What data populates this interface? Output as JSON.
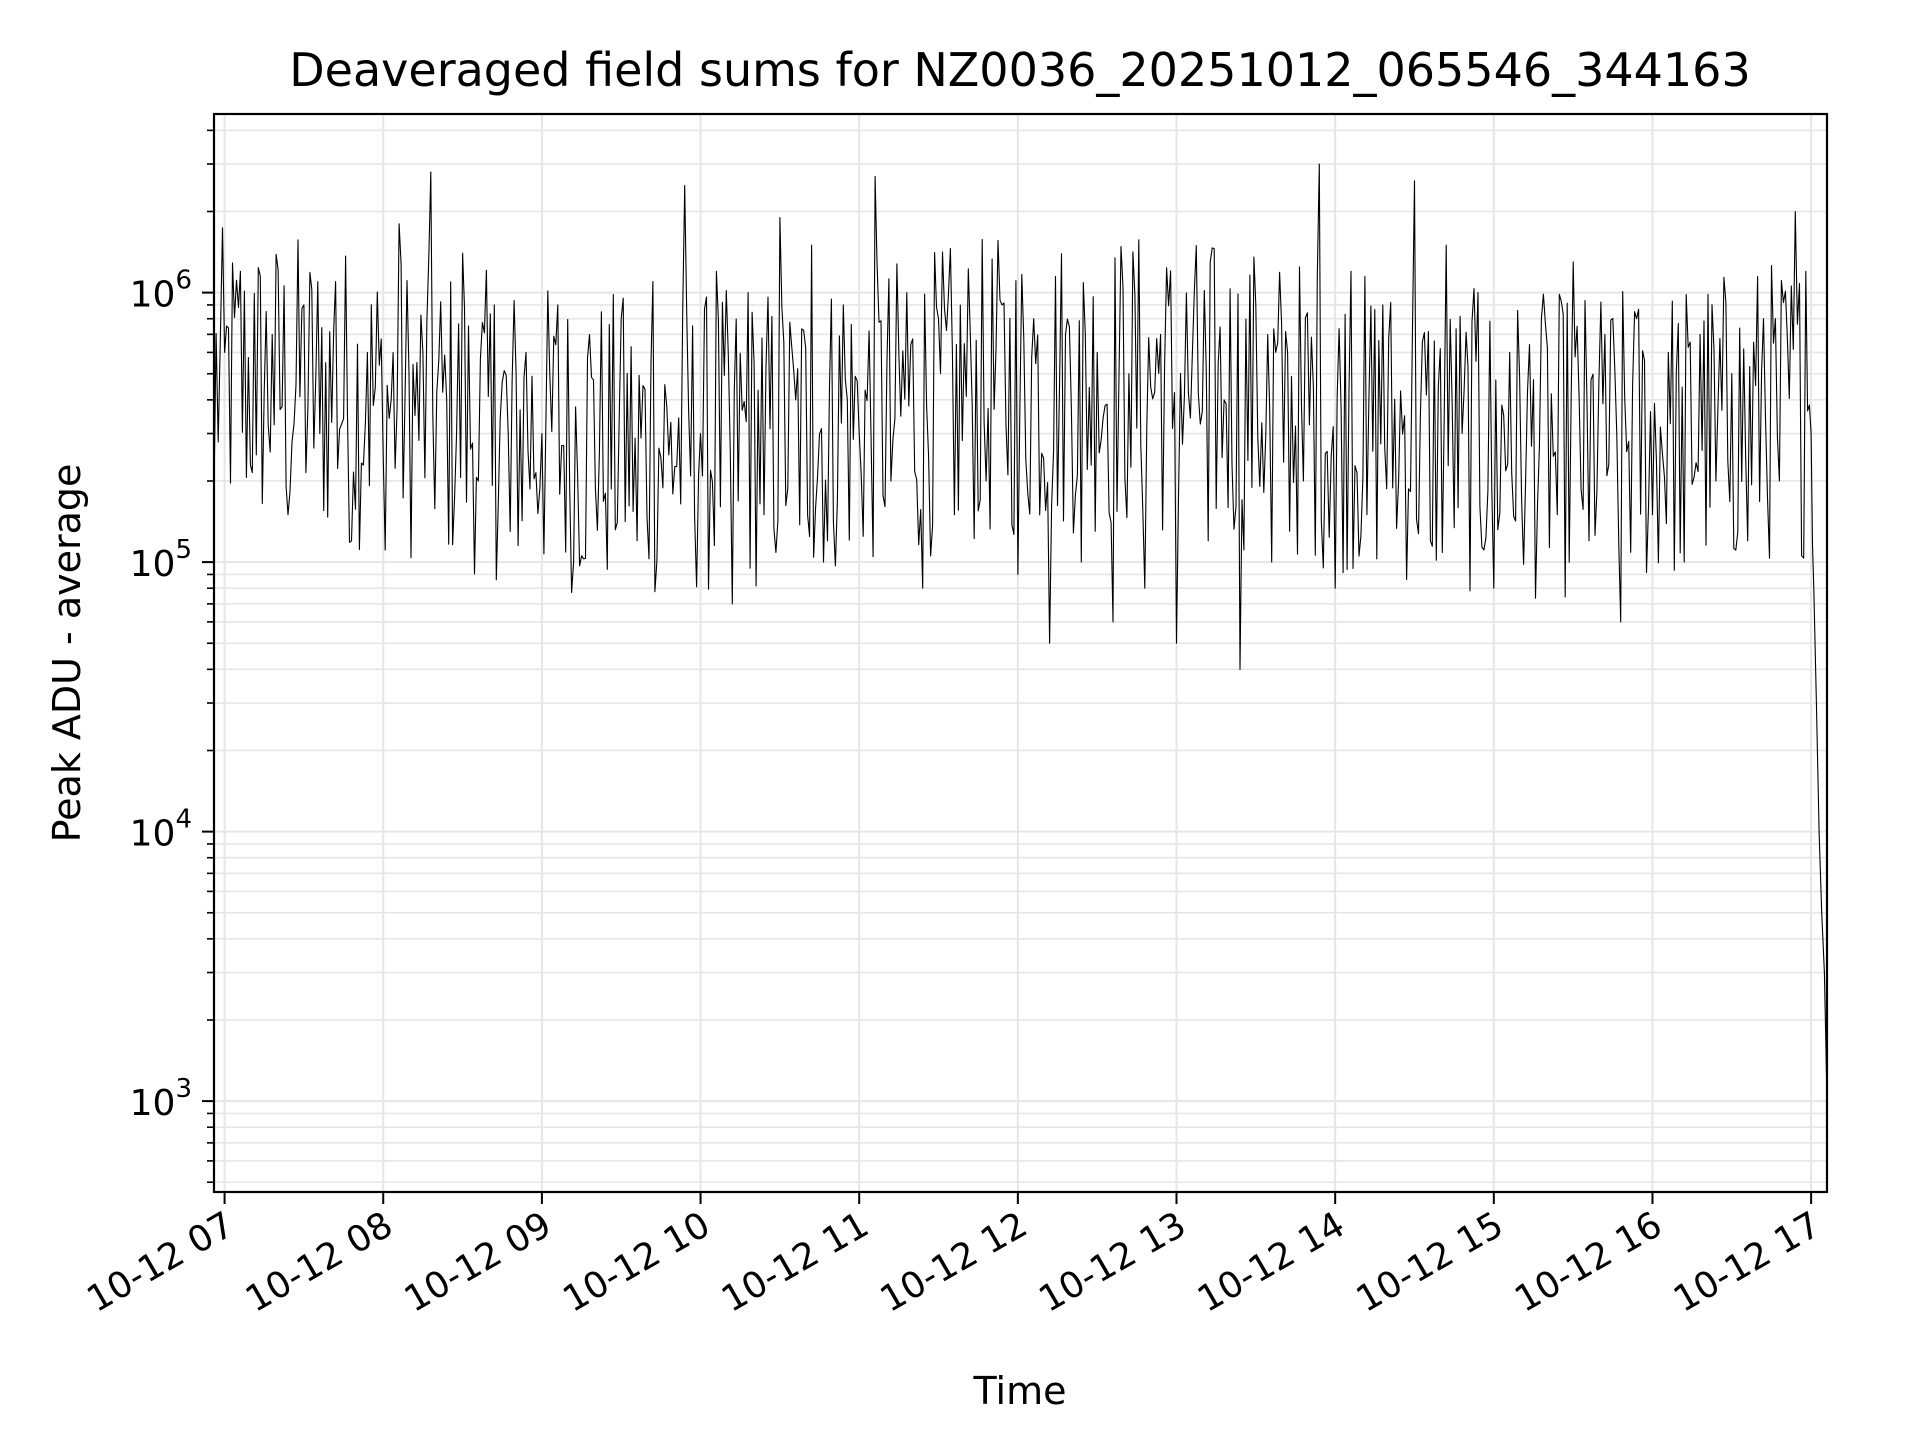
{
  "chart_data": {
    "type": "line",
    "title": "Deaveraged field sums for NZ0036_20251012_065546_344163",
    "xlabel": "Time",
    "ylabel": "Peak ADU - average",
    "yscale": "log",
    "ylim": [
      460,
      4600000
    ],
    "xlim": [
      "2025-10-12 06:56",
      "2025-10-12 17:06"
    ],
    "grid": true,
    "line_color": "#000000",
    "grid_color": "#e6e6e6",
    "x_ticks": [
      "10-12 07",
      "10-12 08",
      "10-12 09",
      "10-12 10",
      "10-12 11",
      "10-12 12",
      "10-12 13",
      "10-12 14",
      "10-12 15",
      "10-12 16",
      "10-12 17"
    ],
    "y_ticks": [
      {
        "value": 1000,
        "base": "10",
        "exp": "3"
      },
      {
        "value": 10000,
        "base": "10",
        "exp": "4"
      },
      {
        "value": 100000,
        "base": "10",
        "exp": "5"
      },
      {
        "value": 1000000,
        "base": "10",
        "exp": "6"
      }
    ],
    "series": [
      {
        "x": [
          "2025-10-12 06:56",
          "2025-10-12 07:00",
          "2025-10-12 07:06",
          "2025-10-12 07:12",
          "2025-10-12 07:18",
          "2025-10-12 07:24",
          "2025-10-12 07:30",
          "2025-10-12 07:36",
          "2025-10-12 07:42",
          "2025-10-12 07:48",
          "2025-10-12 07:54",
          "2025-10-12 08:00",
          "2025-10-12 08:06",
          "2025-10-12 08:12",
          "2025-10-12 08:18",
          "2025-10-12 08:24",
          "2025-10-12 08:30",
          "2025-10-12 08:36",
          "2025-10-12 08:42",
          "2025-10-12 08:48",
          "2025-10-12 08:54",
          "2025-10-12 09:00",
          "2025-10-12 09:06",
          "2025-10-12 09:12",
          "2025-10-12 09:18",
          "2025-10-12 09:24",
          "2025-10-12 09:30",
          "2025-10-12 09:36",
          "2025-10-12 09:42",
          "2025-10-12 09:48",
          "2025-10-12 09:54",
          "2025-10-12 10:00",
          "2025-10-12 10:06",
          "2025-10-12 10:12",
          "2025-10-12 10:18",
          "2025-10-12 10:24",
          "2025-10-12 10:30",
          "2025-10-12 10:36",
          "2025-10-12 10:42",
          "2025-10-12 10:48",
          "2025-10-12 10:54",
          "2025-10-12 11:00",
          "2025-10-12 11:06",
          "2025-10-12 11:12",
          "2025-10-12 11:18",
          "2025-10-12 11:24",
          "2025-10-12 11:30",
          "2025-10-12 11:36",
          "2025-10-12 11:42",
          "2025-10-12 11:48",
          "2025-10-12 11:54",
          "2025-10-12 12:00",
          "2025-10-12 12:06",
          "2025-10-12 12:12",
          "2025-10-12 12:18",
          "2025-10-12 12:24",
          "2025-10-12 12:30",
          "2025-10-12 12:36",
          "2025-10-12 12:42",
          "2025-10-12 12:48",
          "2025-10-12 12:54",
          "2025-10-12 13:00",
          "2025-10-12 13:06",
          "2025-10-12 13:12",
          "2025-10-12 13:18",
          "2025-10-12 13:24",
          "2025-10-12 13:30",
          "2025-10-12 13:36",
          "2025-10-12 13:42",
          "2025-10-12 13:48",
          "2025-10-12 13:54",
          "2025-10-12 14:00",
          "2025-10-12 14:06",
          "2025-10-12 14:12",
          "2025-10-12 14:18",
          "2025-10-12 14:24",
          "2025-10-12 14:30",
          "2025-10-12 14:36",
          "2025-10-12 14:42",
          "2025-10-12 14:48",
          "2025-10-12 14:54",
          "2025-10-12 15:00",
          "2025-10-12 15:06",
          "2025-10-12 15:12",
          "2025-10-12 15:18",
          "2025-10-12 15:24",
          "2025-10-12 15:30",
          "2025-10-12 15:36",
          "2025-10-12 15:42",
          "2025-10-12 15:48",
          "2025-10-12 15:54",
          "2025-10-12 16:00",
          "2025-10-12 16:06",
          "2025-10-12 16:12",
          "2025-10-12 16:18",
          "2025-10-12 16:24",
          "2025-10-12 16:30",
          "2025-10-12 16:36",
          "2025-10-12 16:42",
          "2025-10-12 16:48",
          "2025-10-12 16:54",
          "2025-10-12 16:58",
          "2025-10-12 17:00",
          "2025-10-12 17:01",
          "2025-10-12 17:02",
          "2025-10-12 17:03",
          "2025-10-12 17:04",
          "2025-10-12 17:05",
          "2025-10-12 17:06"
        ],
        "y": [
          180000,
          600000,
          1200000,
          250000,
          700000,
          150000,
          900000,
          300000,
          1100000,
          120000,
          600000,
          250000,
          1800000,
          350000,
          2800000,
          400000,
          1400000,
          200000,
          900000,
          130000,
          600000,
          300000,
          900000,
          100000,
          700000,
          180000,
          800000,
          120000,
          1100000,
          250000,
          2500000,
          300000,
          1200000,
          70000,
          1000000,
          150000,
          1900000,
          400000,
          1500000,
          120000,
          900000,
          300000,
          2700000,
          200000,
          1000000,
          80000,
          800000,
          150000,
          700000,
          200000,
          900000,
          90000,
          800000,
          50000,
          700000,
          100000,
          600000,
          60000,
          500000,
          80000,
          700000,
          50000,
          600000,
          120000,
          400000,
          40000,
          900000,
          100000,
          600000,
          200000,
          3000000,
          80000,
          1200000,
          150000,
          900000,
          200000,
          2600000,
          120000,
          1500000,
          300000,
          1000000,
          80000,
          600000,
          200000,
          800000,
          150000,
          1300000,
          120000,
          700000,
          60000,
          800000,
          150000,
          600000,
          100000,
          700000,
          200000,
          500000,
          120000,
          800000,
          200000,
          2000000,
          1200000,
          300000,
          80000,
          30000,
          10000,
          5000,
          3000,
          1000
        ]
      }
    ]
  }
}
